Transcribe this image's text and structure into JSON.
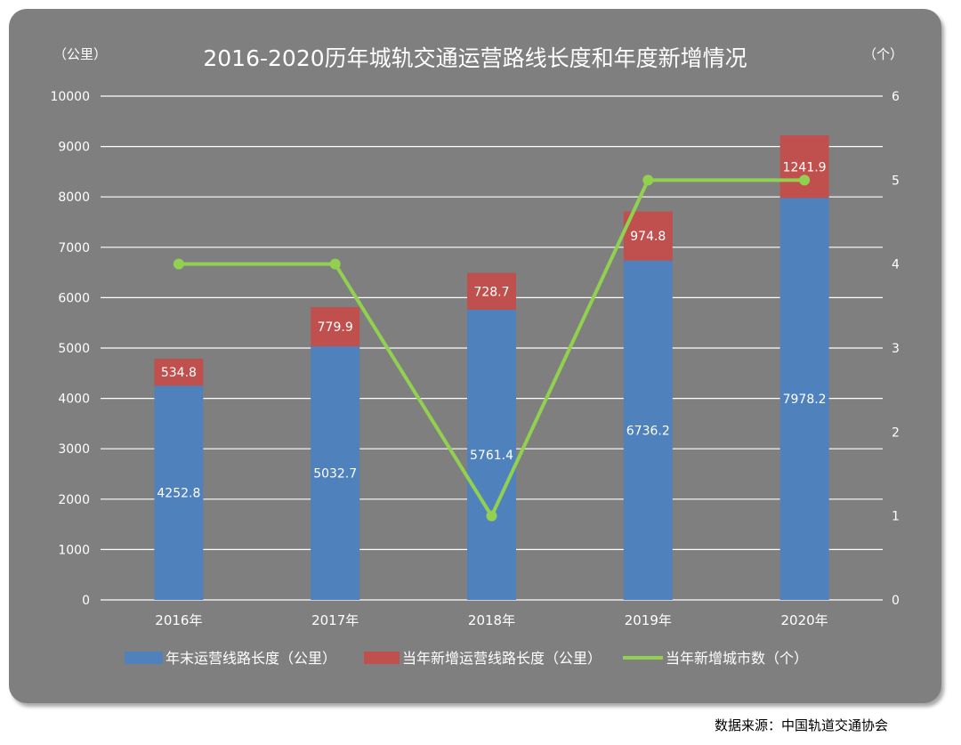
{
  "chart_data": {
    "type": "bar",
    "title": "2016-2020历年城轨交通运营路线长度和年度新增情况",
    "left_unit": "（公里）",
    "right_unit": "（个）",
    "categories": [
      "2016年",
      "2017年",
      "2018年",
      "2019年",
      "2020年"
    ],
    "y_left": {
      "min": 0,
      "max": 10000,
      "step": 1000,
      "ticks": [
        "0",
        "1000",
        "2000",
        "3000",
        "4000",
        "5000",
        "6000",
        "7000",
        "8000",
        "9000",
        "10000"
      ]
    },
    "y_right": {
      "min": 0,
      "max": 6,
      "step": 1,
      "ticks": [
        "0",
        "1",
        "2",
        "3",
        "4",
        "5",
        "6"
      ]
    },
    "grid": true,
    "legend_position": "bottom",
    "series": [
      {
        "name": "年末运营线路长度（公里）",
        "kind": "bar-stacked",
        "axis": "left",
        "color": "#4f81bd",
        "values": [
          4252.8,
          5032.7,
          5761.4,
          6736.2,
          7978.2
        ],
        "labels": [
          "4252.8",
          "5032.7",
          "5761.4",
          "6736.2",
          "7978.2"
        ]
      },
      {
        "name": "当年新增运营线路长度（公里）",
        "kind": "bar-stacked",
        "axis": "left",
        "color": "#c0504d",
        "values": [
          534.8,
          779.9,
          728.7,
          974.8,
          1241.9
        ],
        "labels": [
          "534.8",
          "779.9",
          "728.7",
          "974.8",
          "1241.9"
        ]
      },
      {
        "name": "当年新增城市数（个）",
        "kind": "line",
        "axis": "right",
        "color": "#92d050",
        "values": [
          4,
          4,
          1,
          5,
          5
        ]
      }
    ]
  },
  "source": "数据来源：中国轨道交通协会"
}
